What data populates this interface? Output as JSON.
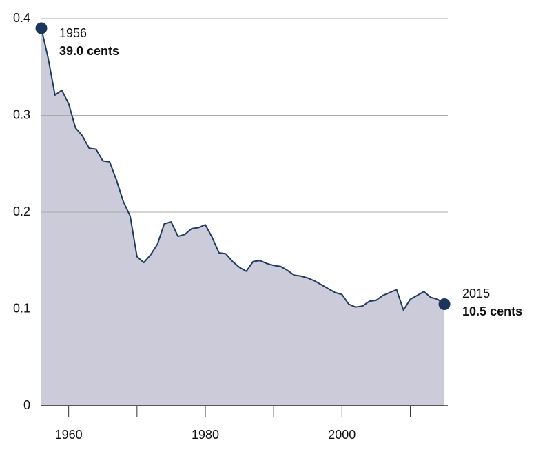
{
  "chart_data": {
    "type": "area",
    "x": [
      1956,
      1957,
      1958,
      1959,
      1960,
      1961,
      1962,
      1963,
      1964,
      1965,
      1966,
      1967,
      1968,
      1969,
      1970,
      1971,
      1972,
      1973,
      1974,
      1975,
      1976,
      1977,
      1978,
      1979,
      1980,
      1981,
      1982,
      1983,
      1984,
      1985,
      1986,
      1987,
      1988,
      1989,
      1990,
      1991,
      1992,
      1993,
      1994,
      1995,
      1996,
      1997,
      1998,
      1999,
      2000,
      2001,
      2002,
      2003,
      2004,
      2005,
      2006,
      2007,
      2008,
      2009,
      2010,
      2011,
      2012,
      2013,
      2014,
      2015
    ],
    "values": [
      0.39,
      0.359,
      0.321,
      0.326,
      0.312,
      0.287,
      0.279,
      0.266,
      0.265,
      0.253,
      0.252,
      0.233,
      0.211,
      0.196,
      0.154,
      0.148,
      0.156,
      0.167,
      0.188,
      0.19,
      0.175,
      0.177,
      0.183,
      0.184,
      0.187,
      0.174,
      0.158,
      0.157,
      0.149,
      0.143,
      0.139,
      0.149,
      0.15,
      0.147,
      0.145,
      0.144,
      0.14,
      0.135,
      0.134,
      0.132,
      0.129,
      0.125,
      0.121,
      0.117,
      0.115,
      0.105,
      0.102,
      0.103,
      0.108,
      0.109,
      0.114,
      0.117,
      0.12,
      0.099,
      0.11,
      0.114,
      0.118,
      0.112,
      0.11,
      0.105
    ],
    "color": "#1f3a63",
    "fill": "#cccbd9",
    "xlim": [
      1956,
      2015.5
    ],
    "xticks": [
      1960,
      1980,
      2000
    ],
    "xminor_ticks": [
      1970,
      1990,
      2010
    ],
    "ylim": [
      0,
      0.4
    ],
    "yticks": [
      0,
      0.1,
      0.2,
      0.3,
      0.4
    ],
    "grid": true,
    "annotations": [
      {
        "x": 1956,
        "y": 0.39,
        "text": [
          "1956",
          "39.0 cents"
        ]
      },
      {
        "x": 2015,
        "y": 0.105,
        "text": [
          "2015",
          "10.5 cents"
        ]
      }
    ]
  }
}
